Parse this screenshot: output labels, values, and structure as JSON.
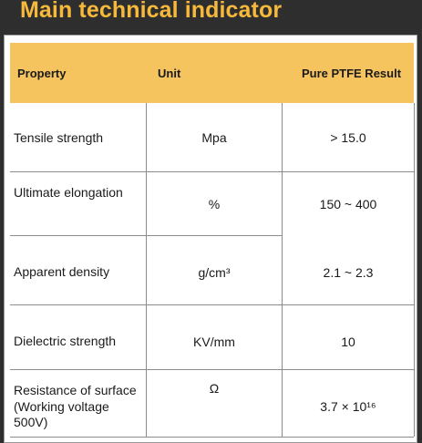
{
  "title": "Main technical indicator",
  "table": {
    "headers": {
      "property": "Property",
      "unit": "Unit",
      "result": "Pure PTFE Result"
    },
    "rows": [
      {
        "property": "Tensile strength",
        "unit": "Mpa",
        "result": "> 15.0"
      },
      {
        "property": "Ultimate elongation",
        "unit": "%",
        "result": "150 ~ 400"
      },
      {
        "property": "Apparent density",
        "unit": "g/cm³",
        "result": "2.1 ~ 2.3"
      },
      {
        "property": "Dielectric strength",
        "unit": "KV/mm",
        "result": "10"
      },
      {
        "property": "Resistance of surface (Working voltage 500V)",
        "unit": "Ω",
        "result": "3.7 × 10¹⁶"
      }
    ]
  }
}
